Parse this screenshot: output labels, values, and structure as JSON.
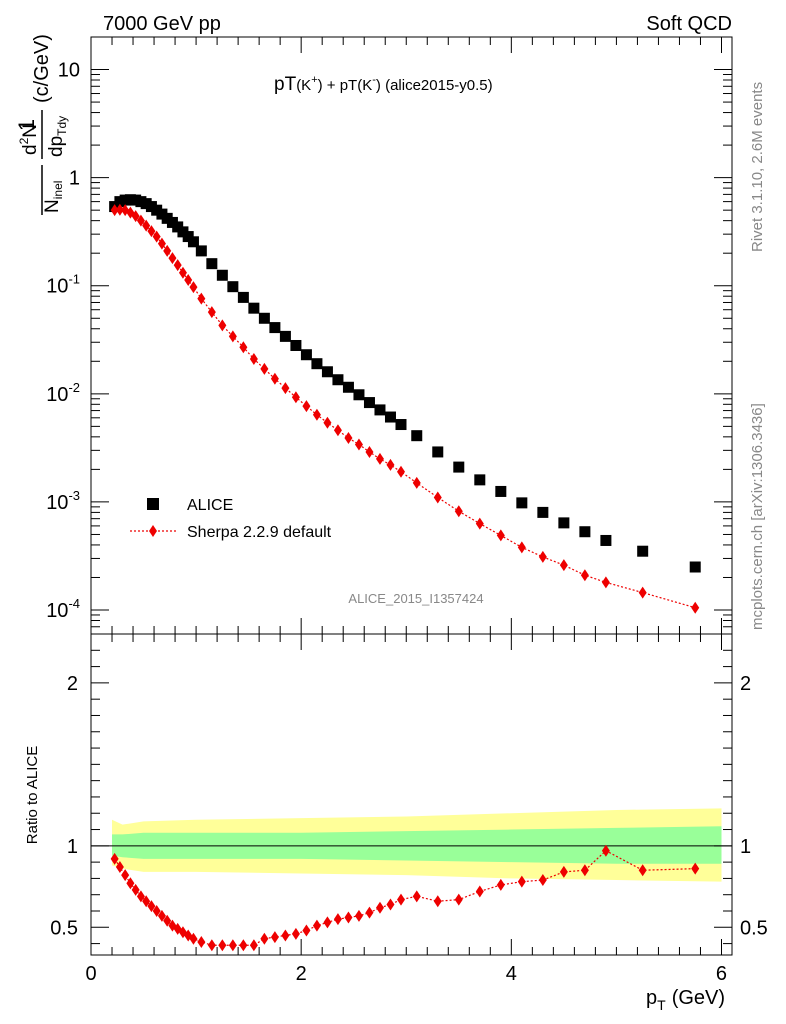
{
  "header": {
    "left": "7000 GeV pp",
    "right": "Soft QCD"
  },
  "plot_title": {
    "part1": "pT",
    "part2": "(K",
    "part3": "+",
    "part4": ") + pT(K",
    "part5": "-",
    "part6": ") (alice2015-y0.5)"
  },
  "watermark": "ALICE_2015_I1357424",
  "side_text": {
    "rivet": "Rivet 3.1.10,  2.6M events",
    "mcplots": "mcplots.cern.ch [arXiv:1306.3436]"
  },
  "ylabel_main": {
    "num": "1",
    "den_a": "N",
    "den_sub": "inel",
    "frac2_num": "d",
    "frac2_sup": "2",
    "frac2_num2": "N",
    "frac2_den": "dp",
    "frac2_den_sub": "Tdy",
    "unit": "(c/GeV)"
  },
  "xlabel": {
    "p": "p",
    "sub": "T",
    "unit": "(GeV)"
  },
  "ratio_ylabel": "Ratio to ALICE",
  "legend": {
    "data_label": "ALICE",
    "mc_label": "Sherpa 2.2.9 default"
  },
  "colors": {
    "data": "#000000",
    "mc": "#ee0000",
    "band_outer": "#ffff99",
    "band_inner": "#99ff99"
  },
  "chart_data": {
    "type": "scatter",
    "xlim": [
      0,
      6.1
    ],
    "main_ylim": [
      6e-05,
      20
    ],
    "main_yscale": "log",
    "ratio_ylim": [
      0.33,
      2.3
    ],
    "x_ticks": [
      "0",
      "2",
      "4",
      "6"
    ],
    "main_y_ticks": [
      {
        "base": "10",
        "exp": "-4"
      },
      {
        "base": "10",
        "exp": "-3"
      },
      {
        "base": "10",
        "exp": "-2"
      },
      {
        "base": "10",
        "exp": "-1"
      },
      {
        "base": "1",
        "exp": ""
      },
      {
        "base": "10",
        "exp": ""
      }
    ],
    "ratio_y_ticks": [
      "0.5",
      "1",
      "2"
    ],
    "x": [
      0.225,
      0.275,
      0.325,
      0.375,
      0.425,
      0.475,
      0.525,
      0.575,
      0.625,
      0.675,
      0.725,
      0.775,
      0.825,
      0.875,
      0.925,
      0.975,
      1.05,
      1.15,
      1.25,
      1.35,
      1.45,
      1.55,
      1.65,
      1.75,
      1.85,
      1.95,
      2.05,
      2.15,
      2.25,
      2.35,
      2.45,
      2.55,
      2.65,
      2.75,
      2.85,
      2.95,
      3.1,
      3.3,
      3.5,
      3.7,
      3.9,
      4.1,
      4.3,
      4.5,
      4.7,
      4.9,
      5.25,
      5.75
    ],
    "series": [
      {
        "name": "ALICE",
        "values": [
          0.54,
          0.6,
          0.62,
          0.625,
          0.62,
          0.6,
          0.575,
          0.54,
          0.5,
          0.46,
          0.42,
          0.385,
          0.35,
          0.315,
          0.285,
          0.255,
          0.21,
          0.16,
          0.125,
          0.098,
          0.078,
          0.062,
          0.05,
          0.041,
          0.034,
          0.028,
          0.023,
          0.019,
          0.016,
          0.0135,
          0.0115,
          0.0098,
          0.0083,
          0.0071,
          0.0061,
          0.0052,
          0.0041,
          0.0029,
          0.0021,
          0.0016,
          0.00125,
          0.00098,
          0.0008,
          0.00064,
          0.00053,
          0.00044,
          0.00035,
          0.00025
        ]
      },
      {
        "name": "Sherpa 2.2.9 default",
        "values": [
          0.5,
          0.505,
          0.5,
          0.475,
          0.44,
          0.4,
          0.36,
          0.32,
          0.285,
          0.245,
          0.21,
          0.18,
          0.155,
          0.132,
          0.113,
          0.097,
          0.076,
          0.057,
          0.043,
          0.034,
          0.027,
          0.021,
          0.017,
          0.0138,
          0.0113,
          0.0093,
          0.0077,
          0.0064,
          0.0054,
          0.0046,
          0.0039,
          0.0034,
          0.0029,
          0.0025,
          0.0022,
          0.0019,
          0.0015,
          0.0011,
          0.00082,
          0.00063,
          0.00049,
          0.00038,
          0.00031,
          0.00026,
          0.00021,
          0.00018,
          0.000145,
          0.000105
        ]
      }
    ],
    "ratio_values": [
      0.92,
      0.84,
      0.8,
      0.76,
      0.71,
      0.67,
      0.63,
      0.6,
      0.57,
      0.53,
      0.5,
      0.47,
      0.44,
      0.42,
      0.4,
      0.38,
      0.36,
      0.356,
      0.345,
      0.347,
      0.346,
      0.34,
      0.34,
      0.34,
      0.332,
      0.332,
      0.335,
      0.337,
      0.34,
      0.34,
      0.34,
      0.345,
      0.35,
      0.35,
      0.36,
      0.37,
      0.37,
      0.38,
      0.39,
      0.39,
      0.4,
      0.39,
      0.39,
      0.4,
      0.4,
      0.41,
      0.41,
      0.42
    ],
    "ratio_display": [
      0.92,
      0.87,
      0.82,
      0.77,
      0.73,
      0.69,
      0.66,
      0.63,
      0.6,
      0.57,
      0.54,
      0.51,
      0.49,
      0.47,
      0.45,
      0.43,
      0.41,
      0.39,
      0.39,
      0.39,
      0.39,
      0.39,
      0.43,
      0.44,
      0.45,
      0.46,
      0.48,
      0.51,
      0.53,
      0.55,
      0.56,
      0.57,
      0.59,
      0.62,
      0.64,
      0.67,
      0.69,
      0.66,
      0.67,
      0.72,
      0.76,
      0.78,
      0.79,
      0.84,
      0.85,
      0.97,
      0.85,
      0.86
    ],
    "band_inner": [
      [
        0.2,
        0.94,
        1.07
      ],
      [
        0.3,
        0.93,
        1.07
      ],
      [
        0.5,
        0.92,
        1.08
      ],
      [
        1.0,
        0.92,
        1.08
      ],
      [
        2.0,
        0.92,
        1.08
      ],
      [
        3.0,
        0.91,
        1.09
      ],
      [
        4.0,
        0.9,
        1.1
      ],
      [
        5.0,
        0.89,
        1.11
      ],
      [
        6.0,
        0.89,
        1.12
      ]
    ],
    "band_outer": [
      [
        0.2,
        0.88,
        1.16
      ],
      [
        0.3,
        0.86,
        1.13
      ],
      [
        0.5,
        0.84,
        1.15
      ],
      [
        1.0,
        0.84,
        1.16
      ],
      [
        2.0,
        0.83,
        1.17
      ],
      [
        3.0,
        0.82,
        1.18
      ],
      [
        4.0,
        0.8,
        1.2
      ],
      [
        5.0,
        0.79,
        1.22
      ],
      [
        6.0,
        0.78,
        1.23
      ]
    ]
  }
}
